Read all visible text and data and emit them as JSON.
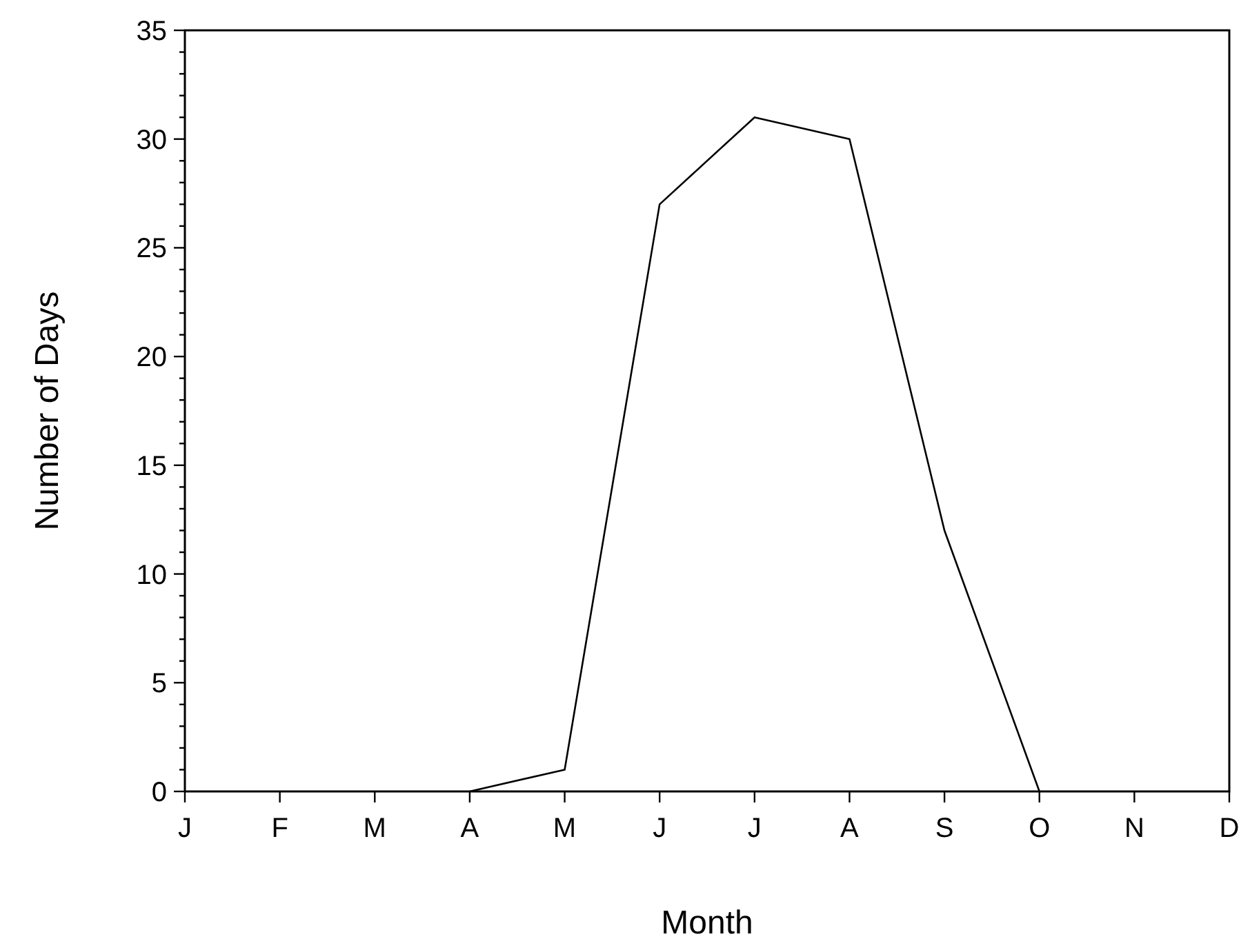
{
  "chart_data": {
    "type": "line",
    "xlabel": "Month",
    "ylabel": "Number of Days",
    "categories": [
      "J",
      "F",
      "M",
      "A",
      "M",
      "J",
      "J",
      "A",
      "S",
      "O",
      "N",
      "D"
    ],
    "series": [
      {
        "color": "#000000",
        "values": [
          null,
          null,
          null,
          0,
          1,
          27,
          31,
          30,
          12,
          0,
          null,
          null
        ]
      }
    ],
    "ylim": [
      0,
      35
    ],
    "yticks": [
      0,
      {
        "value": 1,
        "label": null
      },
      {
        "value": 2,
        "label": null
      },
      {
        "value": 3,
        "label": null
      },
      {
        "value": 4,
        "label": null
      },
      5,
      {
        "value": 6,
        "label": null
      },
      {
        "value": 7,
        "label": null
      },
      {
        "value": 8,
        "label": null
      },
      {
        "value": 9,
        "label": null
      },
      10,
      {
        "value": 11,
        "label": null
      },
      {
        "value": 12,
        "label": null
      },
      {
        "value": 13,
        "label": null
      },
      {
        "value": 14,
        "label": null
      },
      15,
      {
        "value": 16,
        "label": null
      },
      {
        "value": 17,
        "label": null
      },
      {
        "value": 18,
        "label": null
      },
      {
        "value": 19,
        "label": null
      },
      20,
      {
        "value": 21,
        "label": null
      },
      {
        "value": 22,
        "label": null
      },
      {
        "value": 23,
        "label": null
      },
      {
        "value": 24,
        "label": null
      },
      25,
      {
        "value": 26,
        "label": null
      },
      {
        "value": 27,
        "label": null
      },
      {
        "value": 28,
        "label": null
      },
      {
        "value": 29,
        "label": null
      },
      30,
      {
        "value": 31,
        "label": null
      },
      {
        "value": 32,
        "label": null
      },
      {
        "value": 33,
        "label": null
      },
      {
        "value": 34,
        "label": null
      },
      35
    ],
    "grid": false,
    "marker": "none",
    "line_style": "solid"
  }
}
